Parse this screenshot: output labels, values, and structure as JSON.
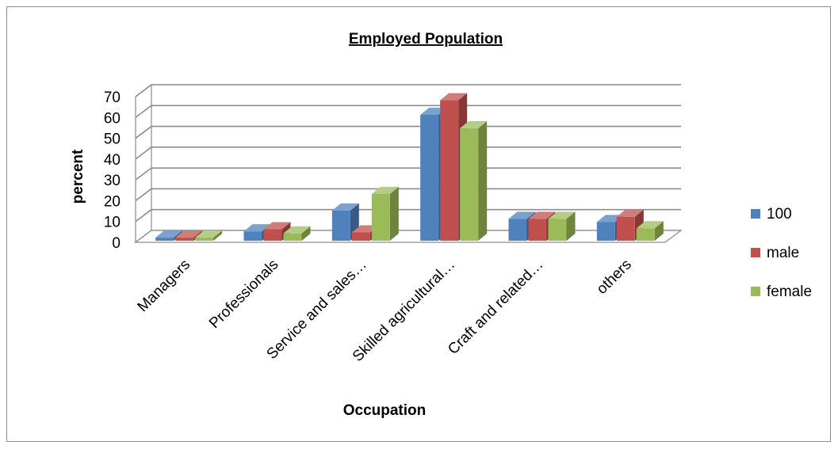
{
  "chart_data": {
    "type": "bar",
    "title": "Employed Population",
    "xlabel": "Occupation",
    "ylabel": "percent",
    "ylim": [
      0,
      70
    ],
    "yticks": [
      "0",
      "10",
      "20",
      "30",
      "40",
      "50",
      "60",
      "70"
    ],
    "grid": true,
    "style": "3d-clustered-column",
    "legend_position": "right",
    "categories": [
      "Managers",
      "Professionals",
      "Service and sales…",
      "Skilled agricultural…",
      "Craft and related…",
      "others"
    ],
    "series": [
      {
        "name": "100",
        "color": "#4F81BD",
        "values": [
          1.5,
          4.5,
          14.5,
          60.5,
          10.5,
          9
        ]
      },
      {
        "name": "male",
        "color": "#C0504D",
        "values": [
          1.5,
          5.5,
          4,
          67.5,
          10.5,
          11.5
        ]
      },
      {
        "name": "female",
        "color": "#9BBB59",
        "values": [
          1.5,
          3.5,
          22.5,
          54,
          10.5,
          6
        ]
      }
    ]
  }
}
